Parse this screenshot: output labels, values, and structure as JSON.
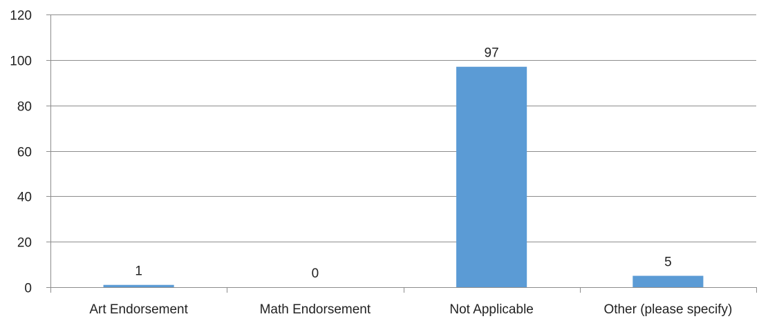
{
  "chart_data": {
    "type": "bar",
    "title": "",
    "xlabel": "",
    "ylabel": "",
    "categories": [
      "Art Endorsement",
      "Math Endorsement",
      "Not Applicable",
      "Other (please specify)"
    ],
    "values": [
      1,
      0,
      97,
      5
    ],
    "data_labels": [
      "1",
      "0",
      "97",
      "5"
    ],
    "ylim": [
      0,
      120
    ],
    "yticks": [
      0,
      20,
      40,
      60,
      80,
      100,
      120
    ],
    "ytick_labels": [
      "0",
      "20",
      "40",
      "60",
      "80",
      "100",
      "120"
    ],
    "grid": true,
    "legend": "none",
    "bar_color": "#5b9bd5",
    "grid_color": "#8c8c8c",
    "text_color": "#222222"
  }
}
